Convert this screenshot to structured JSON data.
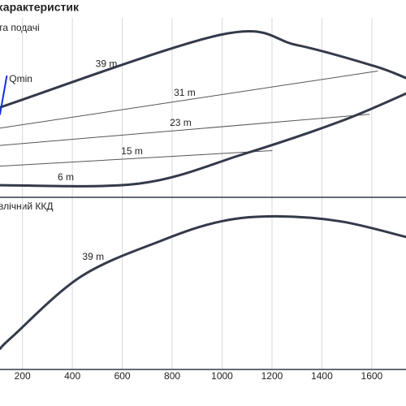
{
  "chart_data": [
    {
      "type": "line",
      "title": "характеристик",
      "subtitle": "та подачі",
      "xlim": [
        110,
        1737
      ],
      "ylim": [
        0,
        100
      ],
      "series": [
        {
          "name": "39 m",
          "color": "#333a4a",
          "line_width": 3,
          "x": [
            110,
            995,
            1300,
            1607,
            1737
          ],
          "values": [
            52,
            94,
            88,
            76,
            69
          ]
        },
        {
          "name": "31 m",
          "color": "#555555",
          "line_width": 1,
          "x": [
            110,
            1623
          ],
          "values": [
            40,
            73
          ]
        },
        {
          "name": "23 m",
          "color": "#555555",
          "line_width": 1,
          "x": [
            110,
            1590
          ],
          "values": [
            30,
            48
          ]
        },
        {
          "name": "15 m",
          "color": "#555555",
          "line_width": 1,
          "x": [
            110,
            1200
          ],
          "values": [
            18,
            27
          ]
        },
        {
          "name": "6 m",
          "color": "#333a4a",
          "line_width": 3,
          "x": [
            110,
            670,
            1086,
            1476,
            1737
          ],
          "values": [
            7,
            8,
            25,
            44,
            60
          ]
        },
        {
          "name": "Qmin",
          "color": "#1030e0",
          "line_width": 2,
          "x": [
            110,
            137
          ],
          "values": [
            48,
            70
          ]
        }
      ]
    },
    {
      "type": "line",
      "subtitle": "влічний ККД",
      "xlim": [
        110,
        1737
      ],
      "ylim": [
        0,
        100
      ],
      "xticks": [
        200,
        400,
        600,
        800,
        1000,
        1200,
        1400,
        1600
      ],
      "grid": true,
      "series": [
        {
          "name": "39 m",
          "color": "#333a4a",
          "line_width": 3,
          "x": [
            110,
            159,
            435,
            760,
            995,
            1216,
            1476,
            1737
          ],
          "values": [
            12,
            19,
            54,
            75,
            86,
            89,
            86,
            77
          ]
        }
      ]
    }
  ]
}
